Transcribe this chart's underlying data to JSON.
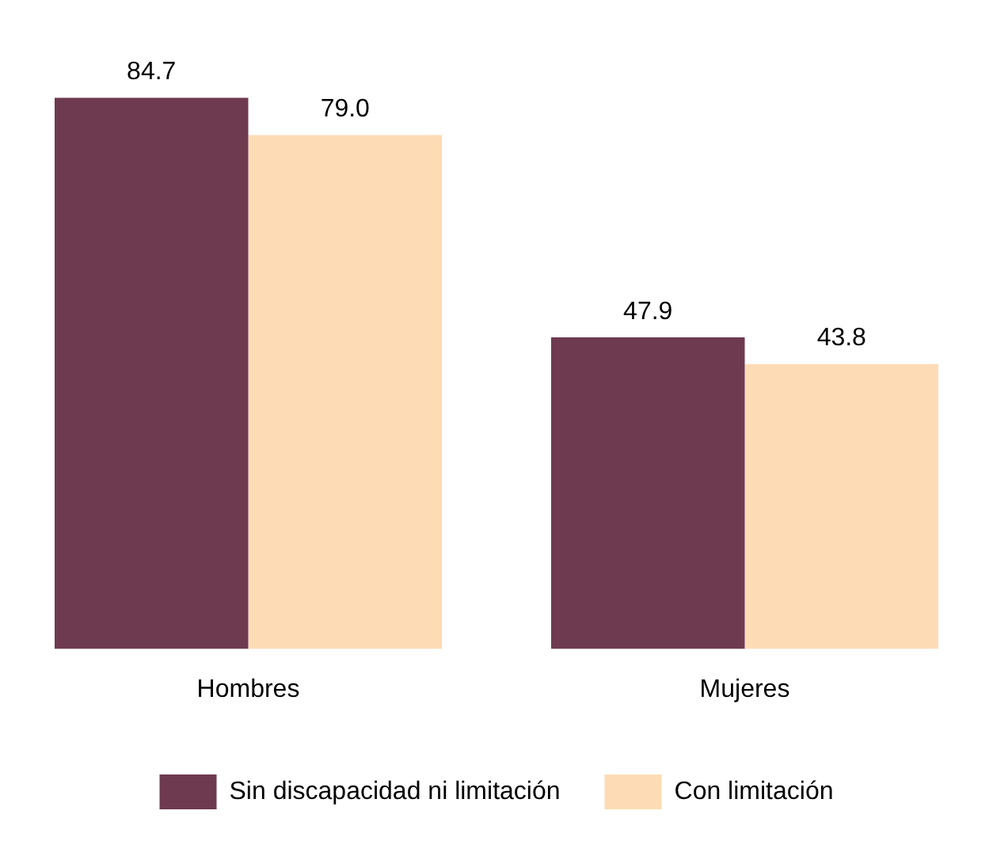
{
  "chart_data": {
    "type": "bar",
    "categories": [
      "Hombres",
      "Mujeres"
    ],
    "series": [
      {
        "name": "Sin discapacidad ni limitación",
        "color": "#6e3a50",
        "values": [
          84.7,
          47.9
        ],
        "value_labels": [
          "84.7",
          "47.9"
        ]
      },
      {
        "name": "Con limitación",
        "color": "#fddcb5",
        "values": [
          79.0,
          43.8
        ],
        "value_labels": [
          "79.0",
          "43.8"
        ]
      }
    ],
    "legend": "bottom",
    "grid": false
  }
}
